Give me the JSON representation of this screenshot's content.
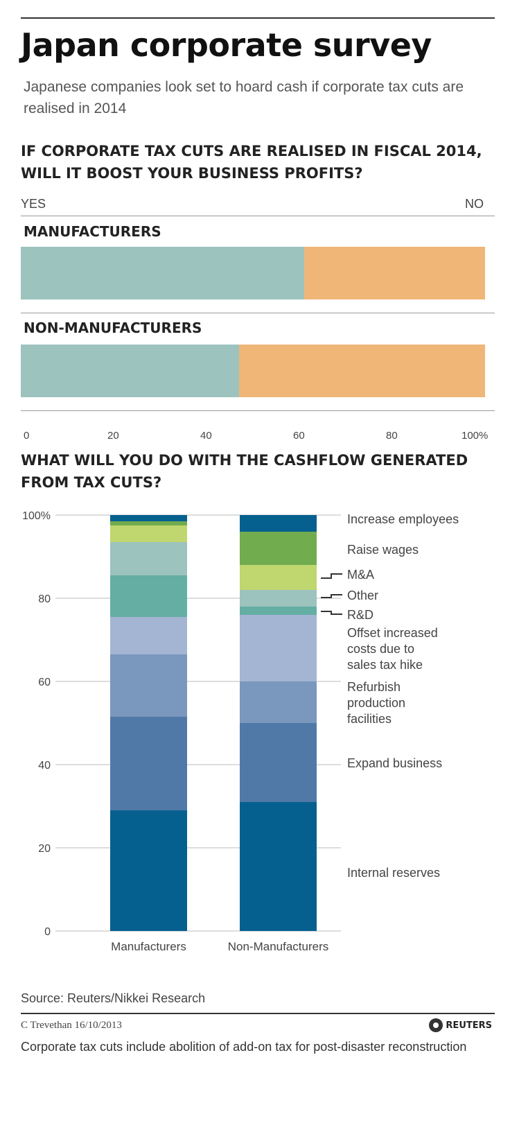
{
  "header": {
    "title": "Japan corporate survey",
    "subtitle": "Japanese companies  look set to hoard cash if corporate tax cuts are realised in 2014"
  },
  "colors": {
    "yes": "#9cc3be",
    "no": "#efb678",
    "internal_reserves": "#06608f",
    "expand_business": "#5179a7",
    "refurbish": "#7a97bd",
    "offset": "#a4b5d3",
    "rd": "#64aea4",
    "other": "#9cc3be",
    "ma": "#bfd76e",
    "raise_wages": "#71ac4f",
    "increase_employees": "#06608f"
  },
  "chart_data": [
    {
      "type": "bar",
      "orientation": "horizontal-stacked",
      "title": "IF CORPORATE TAX CUTS  ARE REALISED IN FISCAL 2014, WILL IT BOOST YOUR BUSINESS PROFITS?",
      "categories": [
        "MANUFACTURERS",
        "NON-MANUFACTURERS"
      ],
      "series": [
        {
          "name": "YES",
          "values": [
            61,
            47
          ]
        },
        {
          "name": "NO",
          "values": [
            39,
            53
          ]
        }
      ],
      "xlim": [
        0,
        100
      ],
      "xticks": [
        "0",
        "20",
        "40",
        "60",
        "80",
        "100%"
      ]
    },
    {
      "type": "bar",
      "orientation": "vertical-stacked",
      "title": "WHAT WILL YOU DO WITH THE CASHFLOW GENERATED FROM TAX CUTS?",
      "categories": [
        "Manufacturers",
        "Non-Manufacturers"
      ],
      "series": [
        {
          "name": "Internal reserves",
          "key": "internal_reserves",
          "values": [
            29,
            31
          ]
        },
        {
          "name": "Expand business",
          "key": "expand_business",
          "values": [
            22.5,
            19
          ]
        },
        {
          "name": "Refurbish production facilities",
          "key": "refurbish",
          "values": [
            15,
            10
          ]
        },
        {
          "name": "Offset increased costs due to sales tax hike",
          "key": "offset",
          "values": [
            9,
            16
          ]
        },
        {
          "name": "R&D",
          "key": "rd",
          "values": [
            10,
            2
          ]
        },
        {
          "name": "Other",
          "key": "other",
          "values": [
            8,
            4
          ]
        },
        {
          "name": "M&A",
          "key": "ma",
          "values": [
            4,
            6
          ]
        },
        {
          "name": "Raise wages",
          "key": "raise_wages",
          "values": [
            1,
            8
          ]
        },
        {
          "name": "Increase employees",
          "key": "increase_employees",
          "values": [
            1.5,
            4
          ]
        }
      ],
      "ylim": [
        0,
        100
      ],
      "yticks": [
        "0",
        "20",
        "40",
        "60",
        "80",
        "100%"
      ],
      "legend_lines": [
        [
          "Increase employees"
        ],
        [
          "Raise wages"
        ],
        [
          "M&A"
        ],
        [
          "Other"
        ],
        [
          "R&D"
        ],
        [
          "Offset increased",
          "costs due to",
          "sales tax hike"
        ],
        [
          "Refurbish",
          "production",
          "facilities"
        ],
        [
          "Expand business"
        ],
        [
          "Internal reserves"
        ]
      ]
    }
  ],
  "labels": {
    "yes": "YES",
    "no": "NO"
  },
  "footer": {
    "source": "Source: Reuters/Nikkei Research",
    "credit": "C Trevethan   16/10/2013",
    "brand": "REUTERS",
    "note": "Corporate tax cuts include abolition of add-on tax for post-disaster reconstruction"
  }
}
